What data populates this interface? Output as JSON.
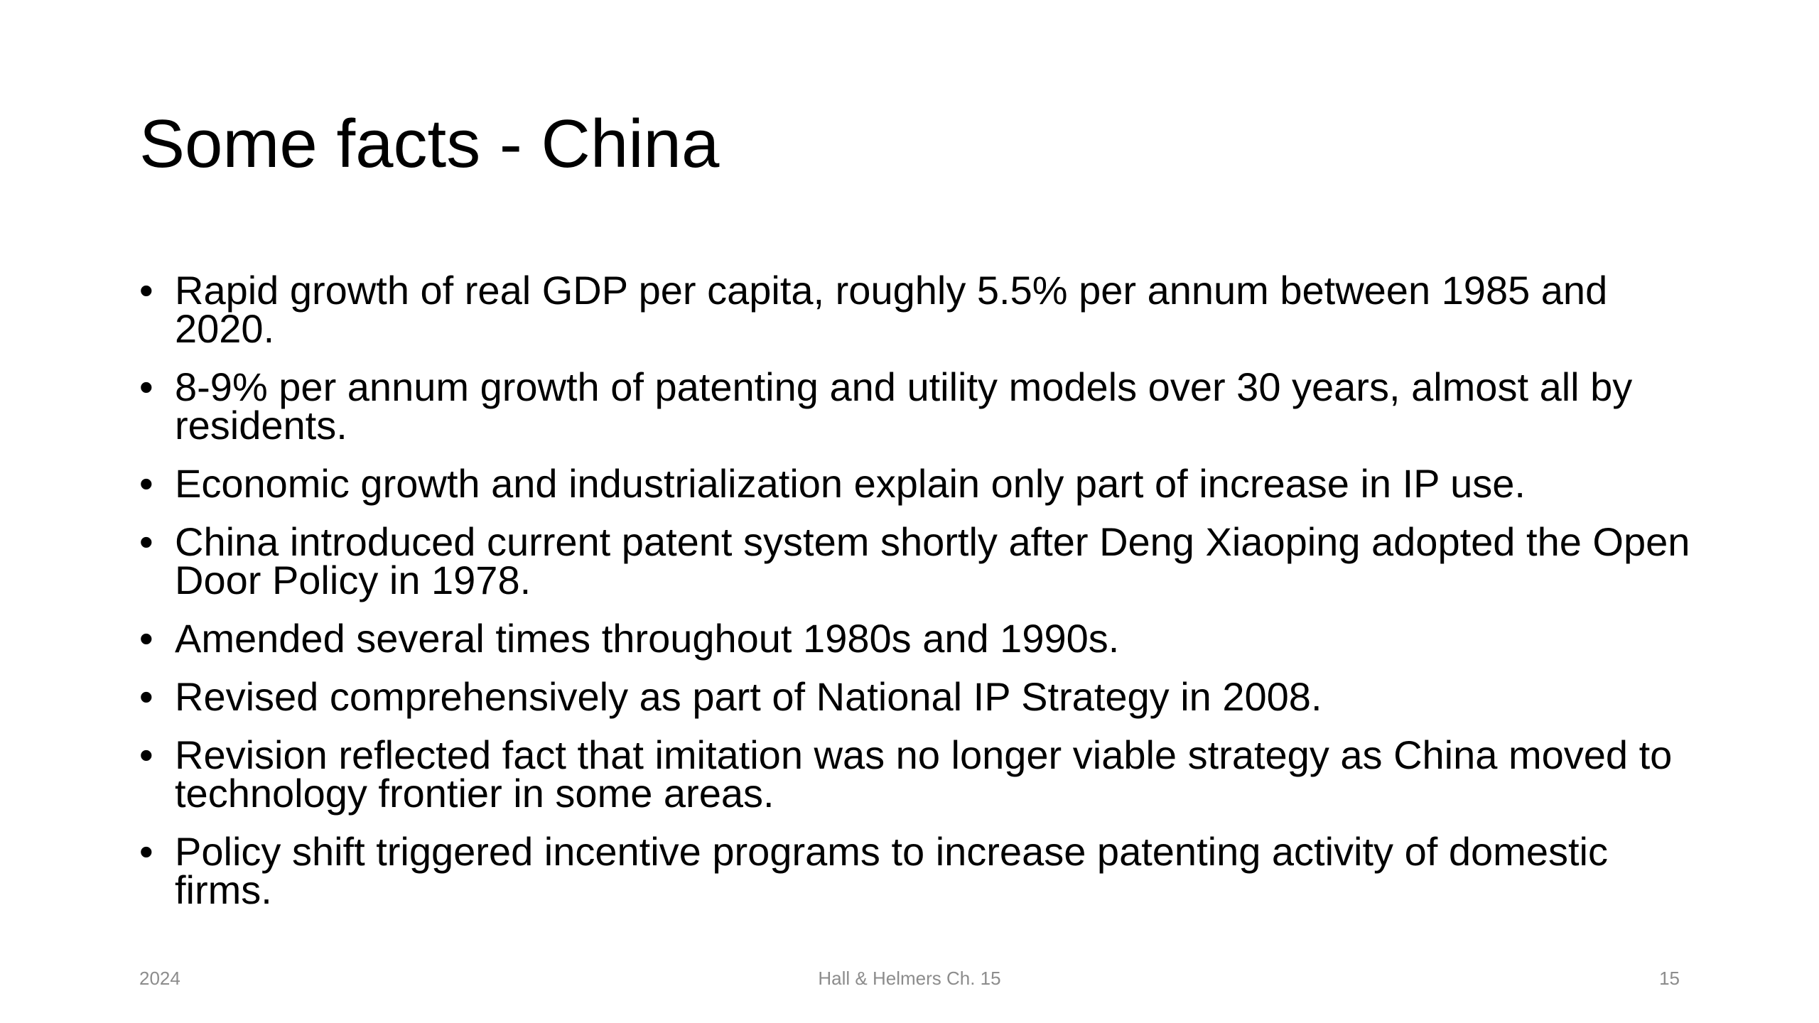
{
  "slide": {
    "title": "Some facts - China",
    "bullets": [
      "Rapid growth of real GDP per capita, roughly 5.5% per annum between 1985 and 2020.",
      "8-9% per annum growth of patenting and utility models over 30 years, almost all by residents.",
      "Economic growth and industrialization explain only part of increase in IP use.",
      "China introduced current patent system shortly after Deng Xiaoping adopted the Open Door Policy in 1978.",
      "Amended several times throughout 1980s and 1990s.",
      "Revised comprehensively as part of National IP Strategy in 2008.",
      "Revision reflected fact that imitation was no longer viable strategy as China moved to technology frontier in some areas.",
      "Policy shift triggered incentive programs to increase patenting activity of domestic firms."
    ],
    "footer": {
      "left": "2024",
      "center": "Hall & Helmers Ch. 15",
      "right": "15"
    }
  }
}
